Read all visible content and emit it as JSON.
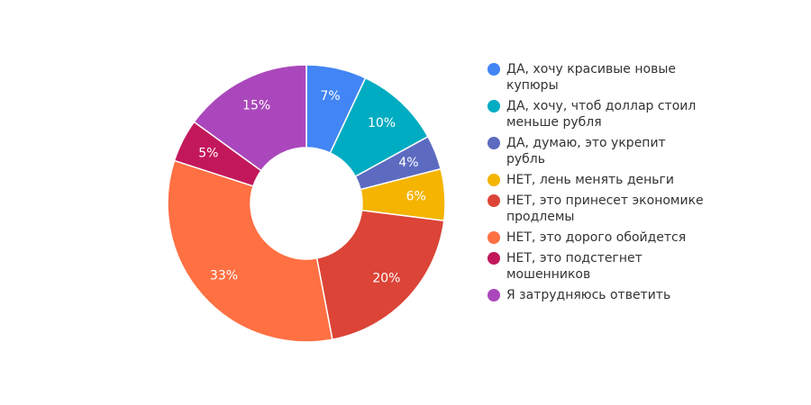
{
  "chart_data": {
    "type": "pie",
    "donut": true,
    "title": "",
    "legend_position": "right",
    "categories": [
      "ДА, хочу красивые новые купюры",
      "ДА, хочу, чтоб доллар стоил меньше рубля",
      "ДА, думаю, это укрепит рубль",
      "НЕТ, лень менять деньги",
      "НЕТ, это принесет экономике продлемы",
      "НЕТ, это дорого обойдется",
      "НЕТ, это подстегнет мошенников",
      "Я затрудняюсь ответить"
    ],
    "values": [
      7,
      10,
      4,
      6,
      20,
      33,
      5,
      15
    ],
    "labels": [
      "7%",
      "10%",
      "4%",
      "6%",
      "20%",
      "33%",
      "5%",
      "15%"
    ],
    "colors": [
      "#4285f4",
      "#00acc1",
      "#5c6bc0",
      "#f4b400",
      "#db4437",
      "#ff7043",
      "#c2185b",
      "#ab47bc"
    ]
  }
}
